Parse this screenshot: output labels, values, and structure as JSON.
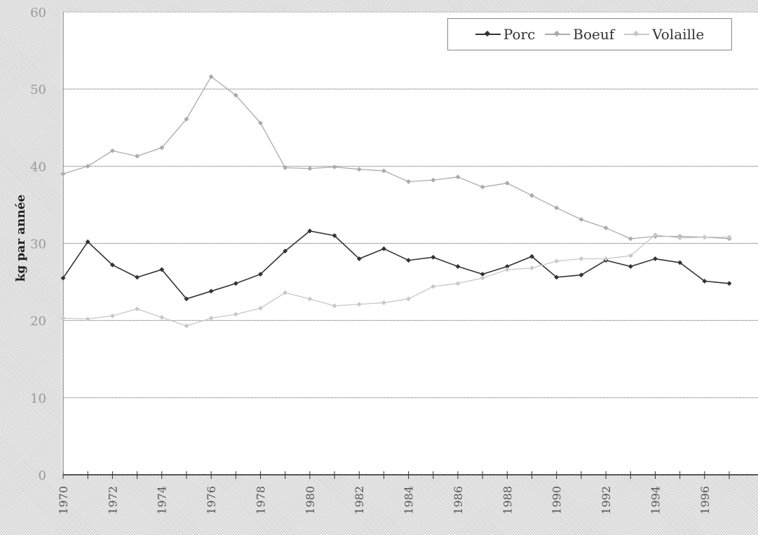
{
  "chart_data": {
    "type": "line",
    "title": "",
    "xlabel": "",
    "ylabel": "kg par année",
    "x": [
      1970,
      1971,
      1972,
      1973,
      1974,
      1975,
      1976,
      1977,
      1978,
      1979,
      1980,
      1981,
      1982,
      1983,
      1984,
      1985,
      1986,
      1987,
      1988,
      1989,
      1990,
      1991,
      1992,
      1993,
      1994,
      1995,
      1996,
      1997
    ],
    "x_tick_labels": [
      "1970",
      "1972",
      "1974",
      "1976",
      "1978",
      "1980",
      "1982",
      "1984",
      "1986",
      "1988",
      "1990",
      "1992",
      "1994",
      "1996"
    ],
    "y_ticks": [
      0,
      10,
      20,
      30,
      40,
      50,
      60
    ],
    "ylim": [
      0,
      60
    ],
    "grid": true,
    "legend_position": "top-right",
    "series": [
      {
        "name": "Porc",
        "color": "#333333",
        "values": [
          25.5,
          30.2,
          27.2,
          25.6,
          26.6,
          22.8,
          23.8,
          24.8,
          26.0,
          29.0,
          31.6,
          31.0,
          28.0,
          29.3,
          27.8,
          28.2,
          27.0,
          26.0,
          27.0,
          28.3,
          25.6,
          25.9,
          27.8,
          27.0,
          28.0,
          27.5,
          25.1,
          24.8
        ]
      },
      {
        "name": "Boeuf",
        "color": "#aaaaaa",
        "values": [
          39.0,
          40.0,
          42.0,
          41.3,
          42.4,
          46.1,
          51.6,
          49.2,
          45.6,
          39.8,
          39.7,
          39.9,
          39.6,
          39.4,
          38.0,
          38.2,
          38.6,
          37.3,
          37.8,
          36.2,
          34.6,
          33.1,
          32.0,
          30.6,
          30.9,
          30.9,
          30.8,
          30.6
        ]
      },
      {
        "name": "Volaille",
        "color": "#c8c8c8",
        "values": [
          20.3,
          20.2,
          20.6,
          21.5,
          20.4,
          19.3,
          20.3,
          20.8,
          21.6,
          23.6,
          22.8,
          21.9,
          22.1,
          22.3,
          22.8,
          24.4,
          24.8,
          25.5,
          26.6,
          26.8,
          27.7,
          28.0,
          28.0,
          28.4,
          31.1,
          30.7,
          30.8,
          30.8
        ]
      }
    ]
  }
}
